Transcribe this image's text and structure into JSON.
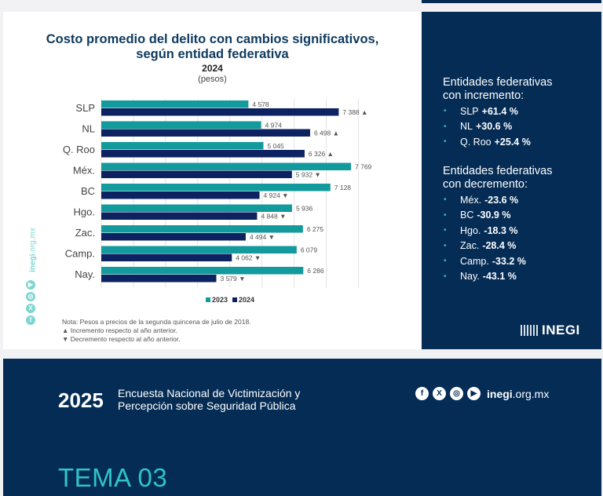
{
  "chart_data": {
    "type": "bar",
    "orientation": "horizontal",
    "title": "Costo promedio del delito con cambios significativos, según entidad federativa",
    "title_line1": "Costo promedio del delito con cambios significativos,",
    "title_line2": "según entidad federativa",
    "subtitle": "2024",
    "unit": "(pesos)",
    "categories": [
      "SLP",
      "NL",
      "Q. Roo",
      "Méx.",
      "BC",
      "Hgo.",
      "Zac.",
      "Camp.",
      "Nay."
    ],
    "series": [
      {
        "name": "2023",
        "color": "#139a9c",
        "values": [
          4578,
          4974,
          5045,
          7769,
          7128,
          5936,
          6275,
          6079,
          6286
        ],
        "labels": [
          "4 578",
          "4 974",
          "5 045",
          "7 769",
          "7 128",
          "5 936",
          "6 275",
          "6 079",
          "6 286"
        ]
      },
      {
        "name": "2024",
        "color": "#0d2260",
        "values": [
          7388,
          6498,
          6326,
          5932,
          4924,
          4848,
          4494,
          4062,
          3579
        ],
        "labels": [
          "7 388",
          "6 498",
          "6 326",
          "5 932",
          "4 924",
          "4 848",
          "4 494",
          "4 062",
          "3 579"
        ],
        "change": [
          "up",
          "up",
          "up",
          "down",
          "down",
          "down",
          "down",
          "down",
          "down"
        ]
      }
    ],
    "xlim": [
      0,
      8000
    ],
    "grid": true,
    "grid_step": 1000,
    "legend_position": "bottom-center",
    "xlabel": "",
    "ylabel": ""
  },
  "legend": {
    "items": [
      {
        "label": "2023",
        "color": "#139a9c"
      },
      {
        "label": "2024",
        "color": "#0d2260"
      }
    ]
  },
  "notes": {
    "line1": "Nota: Pesos a precios de la segunda quincena de julio de 2018.",
    "line2": "▲ Incremento respecto al año anterior.",
    "line3": "▼ Decremento respecto al año anterior."
  },
  "side_social": {
    "site_bold": "inegi",
    "site_rest": ".org.mx",
    "icons": [
      "facebook-icon",
      "x-icon",
      "instagram-icon",
      "youtube-icon"
    ]
  },
  "panel": {
    "increase_heading_1": "Entidades federativas",
    "increase_heading_2": "con incremento:",
    "increase": [
      {
        "name": "SLP",
        "value": "+61.4 %"
      },
      {
        "name": "NL",
        "value": "+30.6 %"
      },
      {
        "name": "Q. Roo",
        "value": "+25.4 %"
      }
    ],
    "decrease_heading_1": "Entidades federativas",
    "decrease_heading_2": "con decremento:",
    "decrease": [
      {
        "name": "Méx.",
        "value": "-23.6 %"
      },
      {
        "name": "BC",
        "value": "-30.9 %"
      },
      {
        "name": "Hgo.",
        "value": "-18.3 %"
      },
      {
        "name": "Zac.",
        "value": "-28.4 %"
      },
      {
        "name": "Camp.",
        "value": "-33.2 %"
      },
      {
        "name": "Nay.",
        "value": "-43.1 %"
      }
    ],
    "logo_text": "INEGI"
  },
  "footer": {
    "year": "2025",
    "survey_line1": "Encuesta Nacional de Victimización y",
    "survey_line2": "Percepción sobre Seguridad Pública",
    "site_bold": "inegi",
    "site_rest": ".org.mx",
    "tema": "TEMA 03"
  }
}
